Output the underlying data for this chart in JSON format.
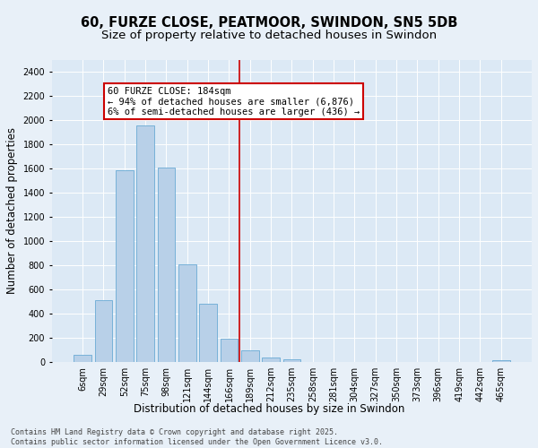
{
  "title_line1": "60, FURZE CLOSE, PEATMOOR, SWINDON, SN5 5DB",
  "title_line2": "Size of property relative to detached houses in Swindon",
  "xlabel": "Distribution of detached houses by size in Swindon",
  "ylabel": "Number of detached properties",
  "categories": [
    "6sqm",
    "29sqm",
    "52sqm",
    "75sqm",
    "98sqm",
    "121sqm",
    "144sqm",
    "166sqm",
    "189sqm",
    "212sqm",
    "235sqm",
    "258sqm",
    "281sqm",
    "304sqm",
    "327sqm",
    "350sqm",
    "373sqm",
    "396sqm",
    "419sqm",
    "442sqm",
    "465sqm"
  ],
  "bar_heights": [
    55,
    510,
    1590,
    1960,
    1610,
    805,
    480,
    195,
    95,
    35,
    20,
    0,
    0,
    0,
    0,
    0,
    0,
    0,
    0,
    0,
    15
  ],
  "bar_color": "#b8d0e8",
  "bar_edge_color": "#6aaad4",
  "vline_x": 7.5,
  "vline_color": "#cc0000",
  "annotation_text": "60 FURZE CLOSE: 184sqm\n← 94% of detached houses are smaller (6,876)\n6% of semi-detached houses are larger (436) →",
  "annotation_box_color": "#ffffff",
  "annotation_box_edge_color": "#cc0000",
  "ylim": [
    0,
    2500
  ],
  "yticks": [
    0,
    200,
    400,
    600,
    800,
    1000,
    1200,
    1400,
    1600,
    1800,
    2000,
    2200,
    2400
  ],
  "bg_color": "#dce9f5",
  "fig_bg_color": "#e8f0f8",
  "footer_text": "Contains HM Land Registry data © Crown copyright and database right 2025.\nContains public sector information licensed under the Open Government Licence v3.0.",
  "title_fontsize": 10.5,
  "subtitle_fontsize": 9.5,
  "axis_label_fontsize": 8.5,
  "tick_fontsize": 7,
  "annotation_fontsize": 7.5,
  "footer_fontsize": 6
}
